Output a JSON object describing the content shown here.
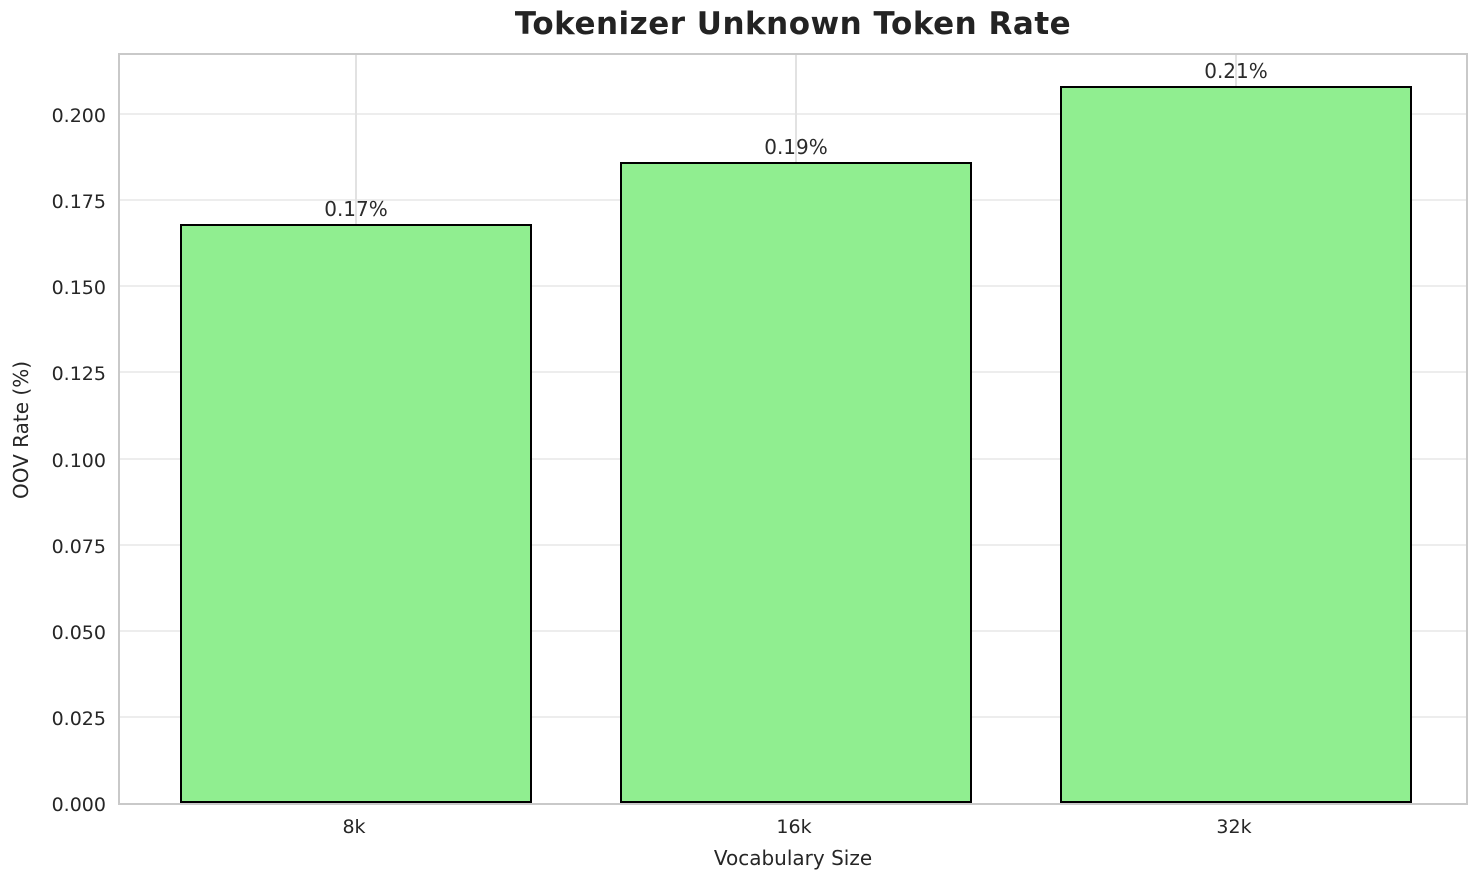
{
  "chart_data": {
    "type": "bar",
    "title": "Tokenizer Unknown Token Rate",
    "xlabel": "Vocabulary Size",
    "ylabel": "OOV Rate (%)",
    "categories": [
      "8k",
      "16k",
      "32k"
    ],
    "values": [
      0.168,
      0.186,
      0.208
    ],
    "bar_value_labels": [
      "0.17%",
      "0.19%",
      "0.21%"
    ],
    "ytick_labels": [
      "0.000",
      "0.025",
      "0.050",
      "0.075",
      "0.100",
      "0.125",
      "0.150",
      "0.175",
      "0.200"
    ],
    "yticks": [
      0.0,
      0.025,
      0.05,
      0.075,
      0.1,
      0.125,
      0.15,
      0.175,
      0.2
    ],
    "ylim": [
      0,
      0.2183
    ],
    "grid": "both",
    "legend": "none",
    "colors": {
      "bar_fill": "#90EE90",
      "bar_edge": "#000000",
      "grid_h": "#ededed",
      "grid_v": "#e2e2e2",
      "spine": "#c9c9c9",
      "text": "#262626"
    }
  }
}
